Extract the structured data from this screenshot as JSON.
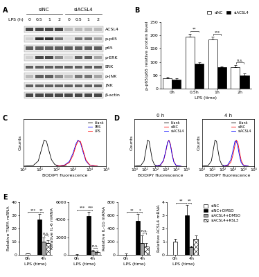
{
  "panel_labels": [
    "A",
    "B",
    "C",
    "D",
    "E"
  ],
  "blot": {
    "groups": [
      "siNC",
      "siACSL4"
    ],
    "lane_title": "LPS (h)",
    "lanes": [
      0,
      0.5,
      1,
      2,
      0,
      0.5,
      1,
      2
    ],
    "rows": [
      {
        "name": "ACSL4",
        "bands": [
          0.8,
          0.8,
          0.8,
          0.8,
          0.3,
          0.3,
          0.3,
          0.3
        ]
      },
      {
        "name": "p-p65",
        "bands": [
          0.2,
          0.9,
          0.9,
          0.6,
          0.15,
          0.6,
          0.6,
          0.4
        ]
      },
      {
        "name": "p65",
        "bands": [
          0.7,
          0.7,
          0.7,
          0.7,
          0.7,
          0.7,
          0.7,
          0.7
        ]
      },
      {
        "name": "p-ERK",
        "bands": [
          0.2,
          0.8,
          0.8,
          0.5,
          0.2,
          0.7,
          0.7,
          0.4
        ]
      },
      {
        "name": "ERK",
        "bands": [
          0.7,
          0.7,
          0.7,
          0.7,
          0.7,
          0.7,
          0.7,
          0.7
        ]
      },
      {
        "name": "p-JNK",
        "bands": [
          0.3,
          0.7,
          0.7,
          0.5,
          0.3,
          0.6,
          0.6,
          0.4
        ]
      },
      {
        "name": "JNK",
        "bands": [
          0.7,
          0.7,
          0.7,
          0.7,
          0.7,
          0.7,
          0.7,
          0.7
        ]
      },
      {
        "name": "β-actin",
        "bands": [
          0.8,
          0.8,
          0.8,
          0.8,
          0.8,
          0.8,
          0.8,
          0.8
        ]
      }
    ]
  },
  "chart_data": [
    {
      "type": "bar",
      "ylabel": "p-p65/p65 relative protein level",
      "xlabel": "LPS (time)",
      "categories": [
        "0h",
        "0.5h",
        "1h",
        "2h"
      ],
      "series": [
        {
          "name": "siNC",
          "color": "#ffffff",
          "values": [
            40,
            195,
            185,
            80
          ],
          "errors": [
            3,
            12,
            10,
            8
          ]
        },
        {
          "name": "siACSL4",
          "color": "#000000",
          "values": [
            35,
            95,
            80,
            50
          ],
          "errors": [
            3,
            5,
            4,
            8
          ]
        }
      ],
      "comparisons": [
        {
          "between": [
            [
              0,
              1
            ],
            [
              1,
              1
            ]
          ],
          "label": "**"
        },
        {
          "between": [
            [
              0,
              2
            ],
            [
              1,
              2
            ]
          ],
          "label": "***"
        },
        {
          "between": [
            [
              0,
              3
            ],
            [
              1,
              3
            ]
          ],
          "label": "n.s."
        }
      ],
      "ylim": [
        0,
        250
      ],
      "yticks": [
        0,
        50,
        100,
        150,
        200,
        250
      ],
      "legend": "upper right"
    },
    {
      "type": "line",
      "log": "x",
      "xlabel": "BODIPY fluorescence",
      "ylabel": "Counts",
      "xlim": [
        1,
        100000
      ],
      "xticks": [
        {
          "value": 1,
          "label": "10⁰"
        },
        {
          "value": 10,
          "label": "10¹"
        },
        {
          "value": 100,
          "label": "10²"
        },
        {
          "value": 1000,
          "label": "10³"
        },
        {
          "value": 10000,
          "label": "10⁴"
        },
        {
          "value": 100000,
          "label": "10⁵"
        }
      ],
      "ylim": [
        0,
        180
      ],
      "yticks": [],
      "tick_labels": "x",
      "legend": "upper right",
      "series": [
        {
          "name": "blank",
          "color": "#000000",
          "x": [
            1,
            4,
            8,
            12,
            18,
            25,
            35,
            50,
            80,
            150,
            400
          ],
          "values": [
            0,
            3,
            20,
            60,
            100,
            95,
            60,
            25,
            6,
            1,
            0
          ]
        },
        {
          "name": "PBS",
          "color": "#0000ff",
          "x": [
            100,
            300,
            600,
            1000,
            1500,
            2000,
            2800,
            4000,
            6000,
            10000,
            30000
          ],
          "values": [
            0,
            4,
            18,
            50,
            85,
            100,
            90,
            55,
            20,
            4,
            0
          ]
        },
        {
          "name": "LPS",
          "color": "#ff0000",
          "x": [
            100,
            300,
            600,
            1000,
            1500,
            2000,
            2800,
            4000,
            6000,
            10000,
            30000
          ],
          "values": [
            0,
            3,
            14,
            42,
            78,
            96,
            95,
            62,
            24,
            5,
            0
          ]
        }
      ]
    },
    {
      "type": "line",
      "log": "x",
      "title": "0 h",
      "xlabel": "BODIPY fluorescence",
      "ylabel": "Counts",
      "xlim": [
        1,
        100000
      ],
      "xticks": [
        {
          "value": 1,
          "label": "10⁰"
        },
        {
          "value": 10,
          "label": "10¹"
        },
        {
          "value": 100,
          "label": "10²"
        },
        {
          "value": 1000,
          "label": "10³"
        },
        {
          "value": 10000,
          "label": "10⁴"
        },
        {
          "value": 100000,
          "label": "10⁵"
        }
      ],
      "ylim": [
        0,
        180
      ],
      "yticks": [],
      "tick_labels": "x",
      "legend": "upper right",
      "series": [
        {
          "name": "blank",
          "color": "#000000",
          "x": [
            1,
            4,
            8,
            12,
            18,
            25,
            35,
            50,
            80,
            150,
            400
          ],
          "values": [
            0,
            3,
            20,
            60,
            100,
            95,
            60,
            25,
            6,
            1,
            0
          ]
        },
        {
          "name": "siNC",
          "color": "#ff0000",
          "x": [
            100,
            300,
            600,
            1000,
            1500,
            2000,
            2800,
            4000,
            6000,
            10000,
            30000
          ],
          "values": [
            0,
            4,
            20,
            55,
            90,
            100,
            85,
            50,
            18,
            3,
            0
          ]
        },
        {
          "name": "siACSL4",
          "color": "#0000ff",
          "x": [
            100,
            300,
            600,
            1000,
            1500,
            2000,
            2800,
            4000,
            6000,
            10000,
            30000
          ],
          "values": [
            0,
            5,
            22,
            58,
            92,
            98,
            82,
            46,
            16,
            3,
            0
          ]
        }
      ]
    },
    {
      "type": "line",
      "log": "x",
      "title": "4 h",
      "xlabel": "BODIPY fluorescence",
      "ylabel": "Counts",
      "xlim": [
        1,
        100000
      ],
      "xticks": [
        {
          "value": 1,
          "label": "10⁰"
        },
        {
          "value": 10,
          "label": "10¹"
        },
        {
          "value": 100,
          "label": "10²"
        },
        {
          "value": 1000,
          "label": "10³"
        },
        {
          "value": 10000,
          "label": "10⁴"
        },
        {
          "value": 100000,
          "label": "10⁵"
        }
      ],
      "ylim": [
        0,
        180
      ],
      "yticks": [],
      "tick_labels": "x",
      "legend": "upper right",
      "series": [
        {
          "name": "blank",
          "color": "#000000",
          "x": [
            1,
            4,
            8,
            12,
            18,
            25,
            35,
            50,
            80,
            150,
            400
          ],
          "values": [
            0,
            3,
            20,
            60,
            100,
            95,
            60,
            25,
            6,
            1,
            0
          ]
        },
        {
          "name": "siNC",
          "color": "#ff0000",
          "x": [
            100,
            300,
            600,
            1000,
            1500,
            2000,
            2800,
            4000,
            6000,
            10000,
            30000
          ],
          "values": [
            0,
            3,
            15,
            45,
            80,
            100,
            92,
            58,
            22,
            4,
            0
          ]
        },
        {
          "name": "siACSL4",
          "color": "#0000ff",
          "x": [
            100,
            300,
            600,
            1000,
            1500,
            2000,
            2800,
            4000,
            6000,
            10000,
            30000
          ],
          "values": [
            0,
            5,
            24,
            62,
            95,
            96,
            78,
            42,
            14,
            3,
            0
          ]
        }
      ]
    },
    {
      "type": "bar",
      "ylabel": "Relative TNFA mRNA",
      "xlabel": "LPS (time)",
      "categories": [
        "0h",
        "4h"
      ],
      "series": [
        {
          "name": "siNC",
          "color": "#ffffff",
          "values": [
            1,
            null
          ],
          "errors": [
            0.3,
            null
          ]
        },
        {
          "name": "siNC+DMSO",
          "color": "#000000",
          "values": [
            null,
            27
          ],
          "errors": [
            null,
            4
          ]
        },
        {
          "name": "siACSL4+DMSO",
          "color": "#a0a0a0",
          "values": [
            null,
            10
          ],
          "errors": [
            null,
            3
          ]
        },
        {
          "name": "siACSL4+RSL3",
          "color": "#ffffff",
          "values": [
            null,
            9
          ],
          "errors": [
            null,
            2
          ]
        }
      ],
      "comparisons": [
        {
          "between": [
            [
              0,
              0
            ],
            [
              1,
              1
            ]
          ],
          "label": "***"
        },
        {
          "between": [
            [
              1,
              1
            ],
            [
              2,
              1
            ]
          ],
          "label": "**"
        },
        {
          "between": [
            [
              2,
              1
            ],
            [
              3,
              1
            ]
          ],
          "label": "n.s."
        }
      ],
      "ylim": [
        0,
        40
      ],
      "yticks": [
        0,
        10,
        20,
        30,
        40
      ]
    },
    {
      "type": "bar",
      "ylabel": "Relative IL-6 mRNA",
      "xlabel": "LPS (time)",
      "categories": [
        "0h",
        "4h"
      ],
      "series": [
        {
          "name": "siNC",
          "color": "#ffffff",
          "values": [
            10,
            null
          ],
          "errors": [
            50,
            null
          ]
        },
        {
          "name": "siNC+DMSO",
          "color": "#000000",
          "values": [
            null,
            4400
          ],
          "errors": [
            null,
            500
          ]
        },
        {
          "name": "siACSL4+DMSO",
          "color": "#a0a0a0",
          "values": [
            null,
            400
          ],
          "errors": [
            null,
            150
          ]
        },
        {
          "name": "siACSL4+RSL3",
          "color": "#ffffff",
          "values": [
            null,
            350
          ],
          "errors": [
            null,
            100
          ]
        }
      ],
      "comparisons": [
        {
          "between": [
            [
              0,
              0
            ],
            [
              1,
              1
            ]
          ],
          "label": "***"
        },
        {
          "between": [
            [
              1,
              1
            ],
            [
              2,
              1
            ]
          ],
          "label": "***"
        },
        {
          "between": [
            [
              2,
              1
            ],
            [
              3,
              1
            ]
          ],
          "label": "n.s."
        }
      ],
      "ylim": [
        0,
        6000
      ],
      "yticks": [
        0,
        2000,
        4000,
        6000
      ]
    },
    {
      "type": "bar",
      "ylabel": "Relative IL-1b mRNA",
      "xlabel": "LPS (time)",
      "categories": [
        "0h",
        "4h"
      ],
      "series": [
        {
          "name": "siNC",
          "color": "#ffffff",
          "values": [
            5,
            null
          ],
          "errors": [
            20,
            null
          ]
        },
        {
          "name": "siNC+DMSO",
          "color": "#000000",
          "values": [
            null,
            520
          ],
          "errors": [
            null,
            100
          ]
        },
        {
          "name": "siACSL4+DMSO",
          "color": "#a0a0a0",
          "values": [
            null,
            180
          ],
          "errors": [
            null,
            120
          ]
        },
        {
          "name": "siACSL4+RSL3",
          "color": "#ffffff",
          "values": [
            null,
            130
          ],
          "errors": [
            null,
            50
          ]
        }
      ],
      "comparisons": [
        {
          "between": [
            [
              0,
              0
            ],
            [
              1,
              1
            ]
          ],
          "label": "**"
        },
        {
          "between": [
            [
              1,
              1
            ],
            [
              2,
              1
            ]
          ],
          "label": "*"
        },
        {
          "between": [
            [
              2,
              1
            ],
            [
              3,
              1
            ]
          ],
          "label": "n.s."
        }
      ],
      "ylim": [
        0,
        800
      ],
      "yticks": [
        0,
        200,
        400,
        600,
        800
      ]
    },
    {
      "type": "bar",
      "ylabel": "Relative ACSL4 mRNA",
      "xlabel": "LPS (time)",
      "categories": [
        "0h",
        "4h"
      ],
      "series": [
        {
          "name": "siNC",
          "color": "#ffffff",
          "values": [
            1.0,
            null
          ],
          "errors": [
            0.2,
            null
          ]
        },
        {
          "name": "siNC+DMSO",
          "color": "#000000",
          "values": [
            null,
            3.0
          ],
          "errors": [
            null,
            0.8
          ]
        },
        {
          "name": "siACSL4+DMSO",
          "color": "#a0a0a0",
          "values": [
            null,
            0.6
          ],
          "errors": [
            null,
            0.1
          ]
        },
        {
          "name": "siACSL4+RSL3",
          "color": "#ffffff",
          "values": [
            null,
            1.2
          ],
          "errors": [
            null,
            0.3
          ]
        }
      ],
      "comparisons": [
        {
          "between": [
            [
              0,
              0
            ],
            [
              1,
              1
            ]
          ],
          "label": "**"
        },
        {
          "between": [
            [
              1,
              1
            ],
            [
              2,
              1
            ]
          ],
          "label": "**"
        }
      ],
      "ylim": [
        0,
        4
      ],
      "yticks": [
        0,
        1,
        2,
        3,
        4
      ],
      "legend": "upper left"
    }
  ]
}
